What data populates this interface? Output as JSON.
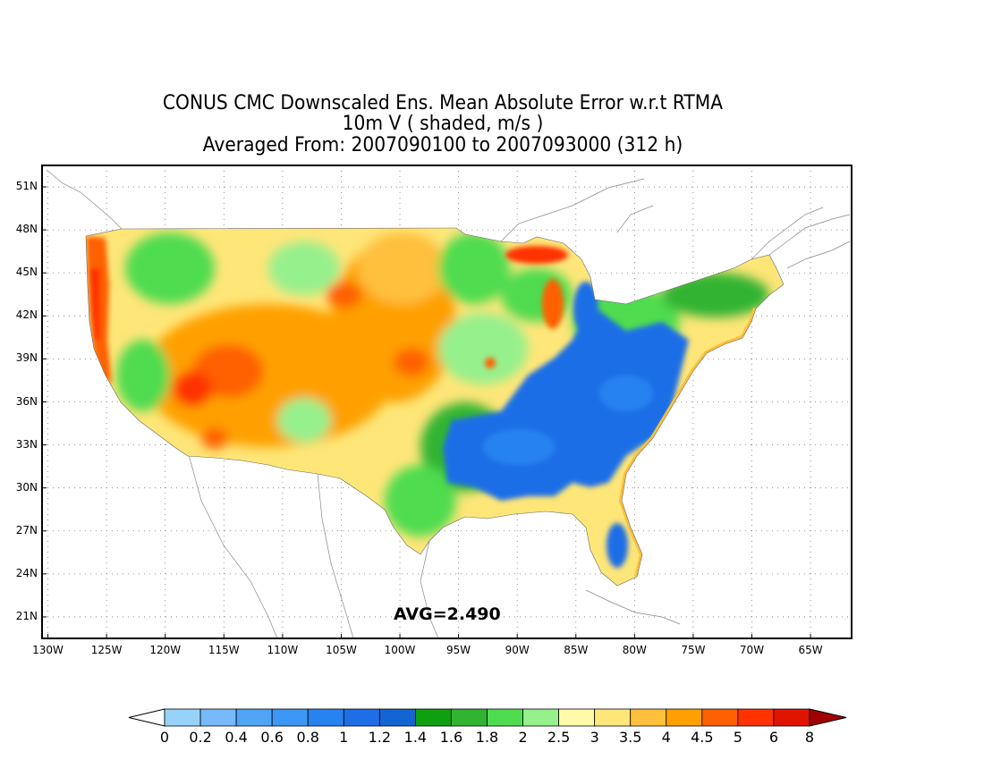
{
  "title": {
    "line1": "CONUS CMC Downscaled Ens. Mean Absolute Error w.r.t RTMA",
    "line2": "10m V ( shaded, m/s )",
    "line3": "Averaged From: 2007090100 to 2007093000 (312 h)"
  },
  "avg_label": "AVG=2.490",
  "axes": {
    "lat_labels": [
      "51N",
      "48N",
      "45N",
      "42N",
      "39N",
      "36N",
      "33N",
      "30N",
      "27N",
      "24N",
      "21N"
    ],
    "lat_values": [
      51,
      48,
      45,
      42,
      39,
      36,
      33,
      30,
      27,
      24,
      21
    ],
    "lon_labels": [
      "130W",
      "125W",
      "120W",
      "115W",
      "110W",
      "105W",
      "100W",
      "95W",
      "90W",
      "85W",
      "80W",
      "75W",
      "70W",
      "65W"
    ],
    "lon_values": [
      -130,
      -125,
      -120,
      -115,
      -110,
      -105,
      -100,
      -95,
      -90,
      -85,
      -80,
      -75,
      -70,
      -65
    ],
    "lat_range": [
      19.5,
      52.5
    ],
    "lon_range": [
      -130.5,
      -61.5
    ],
    "grid": "dotted"
  },
  "colorbar": {
    "labels": [
      "0",
      "0.2",
      "0.4",
      "0.6",
      "0.8",
      "1",
      "1.2",
      "1.4",
      "1.6",
      "1.8",
      "2",
      "2.5",
      "3",
      "3.5",
      "4",
      "4.5",
      "5",
      "6",
      "8"
    ],
    "colors": [
      "#96d2fa",
      "#78b9fa",
      "#50a5f5",
      "#3c97f5",
      "#2882f0",
      "#1e6ee6",
      "#1464d2",
      "#0fa00f",
      "#32b432",
      "#50dc50",
      "#96f08c",
      "#fffaaa",
      "#ffe678",
      "#ffc03c",
      "#ffa000",
      "#ff6000",
      "#ff3200",
      "#e11400",
      "#a50000"
    ],
    "under_color": "#ffffff",
    "over_color": "#a50000"
  },
  "regions": [
    {
      "name": "west-coast",
      "color": "#ff6000"
    },
    {
      "name": "southeast",
      "color": "#1e6ee6"
    },
    {
      "name": "plains",
      "color": "#ffc03c"
    },
    {
      "name": "interior-west",
      "color": "#ffa000"
    },
    {
      "name": "great-lakes",
      "color": "#ff3200"
    }
  ]
}
